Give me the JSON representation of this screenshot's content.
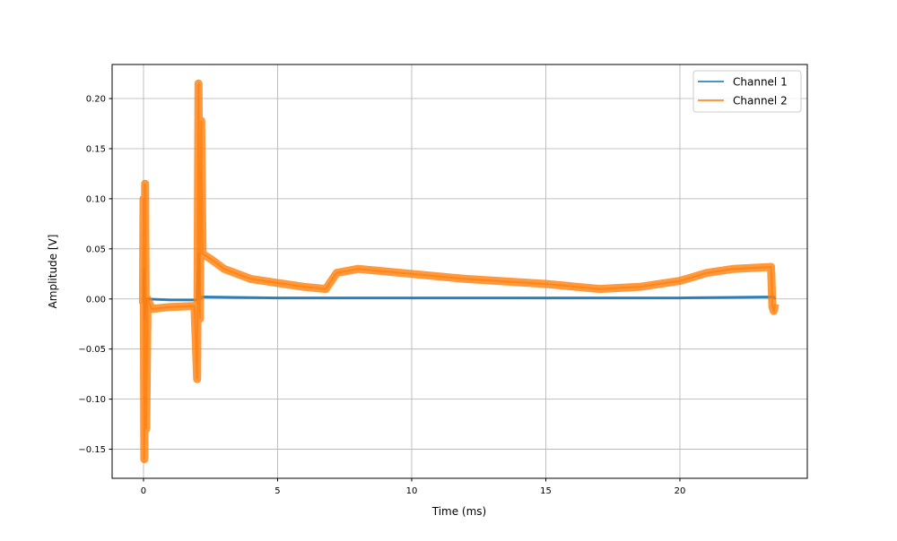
{
  "chart_data": {
    "type": "line",
    "title": "",
    "xlabel": "Time (ms)",
    "ylabel": "Amplitude [V]",
    "xlim": [
      -1.17,
      24.75
    ],
    "ylim": [
      -0.179,
      0.234
    ],
    "xticks": [
      0,
      5,
      10,
      15,
      20
    ],
    "yticks": [
      -0.15,
      -0.1,
      -0.05,
      0.0,
      0.05,
      0.1,
      0.15,
      0.2
    ],
    "ytick_labels": [
      "−0.15",
      "−0.10",
      "−0.05",
      "0.00",
      "0.05",
      "0.10",
      "0.15",
      "0.20"
    ],
    "grid": true,
    "legend_position": "top-right",
    "series": [
      {
        "name": "Channel 1",
        "color": "#1f77b4",
        "points": [
          [
            0,
            0
          ],
          [
            0.02,
            0.03
          ],
          [
            0.04,
            -0.02
          ],
          [
            0.1,
            0
          ],
          [
            1.0,
            -0.001
          ],
          [
            2.0,
            -0.001
          ],
          [
            2.05,
            0.045
          ],
          [
            2.1,
            0
          ],
          [
            2.2,
            0.002
          ],
          [
            5,
            0.001
          ],
          [
            10,
            0.001
          ],
          [
            15,
            0.001
          ],
          [
            20,
            0.001
          ],
          [
            23.5,
            0.002
          ],
          [
            23.55,
            0
          ]
        ]
      },
      {
        "name": "Channel 2",
        "color": "#ff7f0e",
        "points": [
          [
            -0.02,
            -0.005
          ],
          [
            0,
            0.1
          ],
          [
            0.03,
            -0.16
          ],
          [
            0.06,
            0.115
          ],
          [
            0.1,
            -0.13
          ],
          [
            0.15,
            0.0
          ],
          [
            0.3,
            -0.01
          ],
          [
            1.0,
            -0.008
          ],
          [
            1.9,
            -0.007
          ],
          [
            2.0,
            -0.08
          ],
          [
            2.05,
            0.215
          ],
          [
            2.1,
            -0.02
          ],
          [
            2.15,
            0.178
          ],
          [
            2.2,
            0.045
          ],
          [
            2.5,
            0.04
          ],
          [
            3,
            0.03
          ],
          [
            4,
            0.02
          ],
          [
            5,
            0.016
          ],
          [
            6,
            0.012
          ],
          [
            6.8,
            0.01
          ],
          [
            7.2,
            0.026
          ],
          [
            8,
            0.03
          ],
          [
            10,
            0.025
          ],
          [
            12,
            0.02
          ],
          [
            15,
            0.015
          ],
          [
            17,
            0.01
          ],
          [
            18.5,
            0.012
          ],
          [
            20,
            0.018
          ],
          [
            21,
            0.026
          ],
          [
            22,
            0.03
          ],
          [
            23.4,
            0.032
          ],
          [
            23.45,
            -0.008
          ],
          [
            23.5,
            -0.012
          ],
          [
            23.55,
            -0.005
          ]
        ]
      }
    ]
  }
}
